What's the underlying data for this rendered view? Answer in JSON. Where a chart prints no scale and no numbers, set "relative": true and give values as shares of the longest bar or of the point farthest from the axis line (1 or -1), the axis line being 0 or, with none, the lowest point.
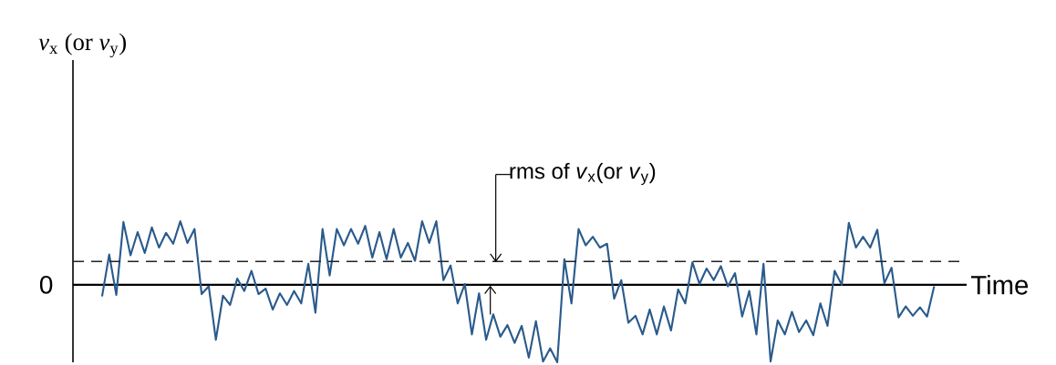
{
  "chart_data": {
    "type": "line",
    "relative": true,
    "tick_labels": false,
    "xlabel": "Time",
    "color": "#2a5b8c",
    "categories": [
      null,
      null,
      null,
      null,
      null,
      null,
      null,
      null,
      null,
      null,
      null,
      null,
      null,
      null,
      null,
      null,
      null,
      null,
      null,
      null,
      null,
      null,
      null,
      null,
      null,
      null,
      null,
      null,
      null,
      null,
      null,
      null,
      null,
      null,
      null,
      null,
      null,
      null,
      null,
      null,
      null,
      null,
      null,
      null,
      null,
      null,
      null,
      null,
      null,
      null,
      null,
      null,
      null,
      null,
      null,
      null,
      null,
      null,
      null,
      null,
      null,
      null,
      null,
      null,
      null,
      null,
      null,
      null,
      null,
      null,
      null,
      null,
      null,
      null,
      null,
      null,
      null,
      null,
      null,
      null,
      null,
      null,
      null,
      null,
      null,
      null,
      null,
      null,
      null,
      null,
      null,
      null,
      null,
      null,
      null,
      null,
      null,
      null,
      null,
      null,
      null,
      null,
      null,
      null,
      null,
      null,
      null,
      null,
      null,
      null,
      null,
      null,
      null,
      null,
      null,
      null,
      null,
      null
    ],
    "values": [
      -0.15,
      0.39,
      -0.13,
      0.81,
      0.38,
      0.68,
      0.41,
      0.74,
      0.48,
      0.67,
      0.53,
      0.82,
      0.54,
      0.72,
      -0.12,
      -0.02,
      -0.71,
      -0.14,
      -0.26,
      0.08,
      -0.08,
      0.18,
      -0.12,
      -0.05,
      -0.32,
      -0.11,
      -0.26,
      -0.08,
      -0.24,
      0.27,
      -0.36,
      0.72,
      0.12,
      0.72,
      0.51,
      0.72,
      0.53,
      0.76,
      0.35,
      0.68,
      0.33,
      0.72,
      0.35,
      0.54,
      0.31,
      0.82,
      0.54,
      0.82,
      0.06,
      0.25,
      -0.24,
      0.01,
      -0.64,
      -0.11,
      -0.71,
      -0.38,
      -0.67,
      -0.52,
      -0.75,
      -0.53,
      -0.94,
      -0.47,
      -0.99,
      -0.82,
      -1.0,
      0.33,
      -0.24,
      0.72,
      0.51,
      0.62,
      0.48,
      0.53,
      -0.18,
      0.06,
      -0.49,
      -0.4,
      -0.64,
      -0.32,
      -0.64,
      -0.28,
      -0.59,
      -0.06,
      -0.24,
      0.29,
      0.01,
      0.21,
      0.06,
      0.24,
      -0.02,
      0.15,
      -0.41,
      -0.08,
      -0.64,
      0.27,
      -0.99,
      -0.46,
      -0.64,
      -0.35,
      -0.61,
      -0.46,
      -0.65,
      -0.24,
      -0.53,
      0.18,
      0.0,
      0.8,
      0.48,
      0.62,
      0.48,
      0.71,
      0.02,
      0.22,
      -0.42,
      -0.28,
      -0.4,
      -0.29,
      -0.41,
      -0.02
    ],
    "ref_lines": [
      {
        "axis": "y",
        "value": 0.3,
        "label": "rms of *v*$_{x}$(or *v*$_{y}$)",
        "line_style": "dashed",
        "color": "#222222"
      }
    ],
    "annotations": [
      "0",
      "*v*$_{x}$ (or *v*$_{y}$)"
    ]
  }
}
